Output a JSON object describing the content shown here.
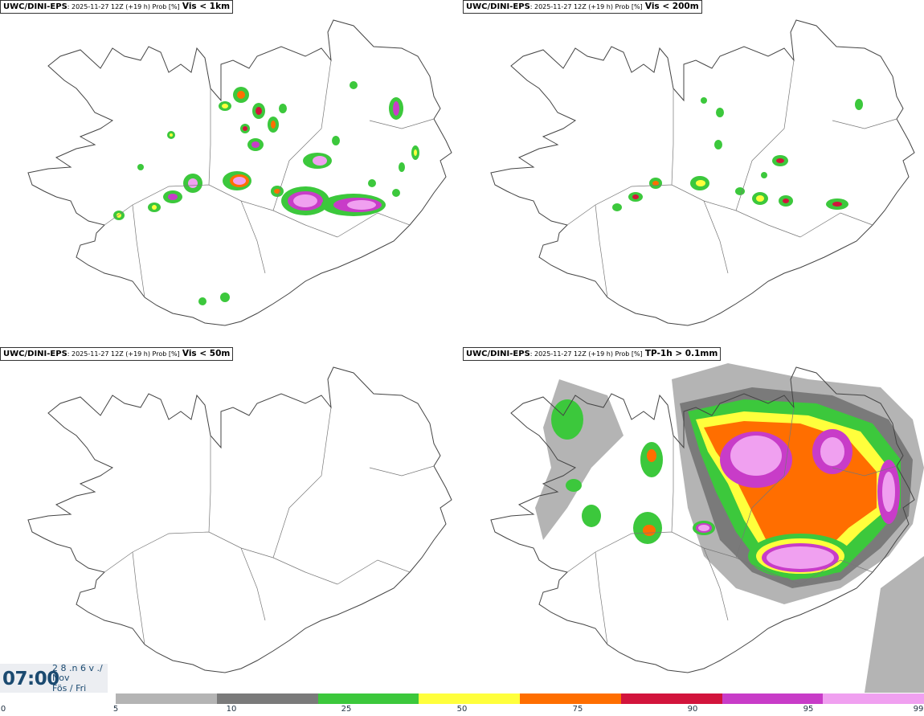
{
  "panels": [
    {
      "model": "UWC/DINI-EPS",
      "meta": ": 2025-11-27 12Z (+19 h) Prob [%]",
      "variable": "Vis < 1km"
    },
    {
      "model": "UWC/DINI-EPS",
      "meta": ": 2025-11-27 12Z (+19 h) Prob [%]",
      "variable": "Vis < 200m"
    },
    {
      "model": "UWC/DINI-EPS",
      "meta": ": 2025-11-27 12Z (+19 h) Prob [%]",
      "variable": "Vis < 50m"
    },
    {
      "model": "UWC/DINI-EPS",
      "meta": ": 2025-11-27 12Z (+19 h) Prob [%]",
      "variable": "TP-1h > 0.1mm"
    }
  ],
  "valid_time": {
    "clock": "07:00",
    "line1": "2 8 .n 6 v ./",
    "line2": "Nov",
    "line3": "Fös / Fri"
  },
  "colorscale": {
    "ticks": [
      "0",
      "5",
      "10",
      "25",
      "50",
      "75",
      "90",
      "95",
      "99"
    ],
    "colors": [
      "#b4b4b4",
      "#7a7a7a",
      "#3cc83c",
      "#ffff3c",
      "#ff6e00",
      "#d2143c",
      "#c83cc8",
      "#f0a0f0"
    ]
  }
}
